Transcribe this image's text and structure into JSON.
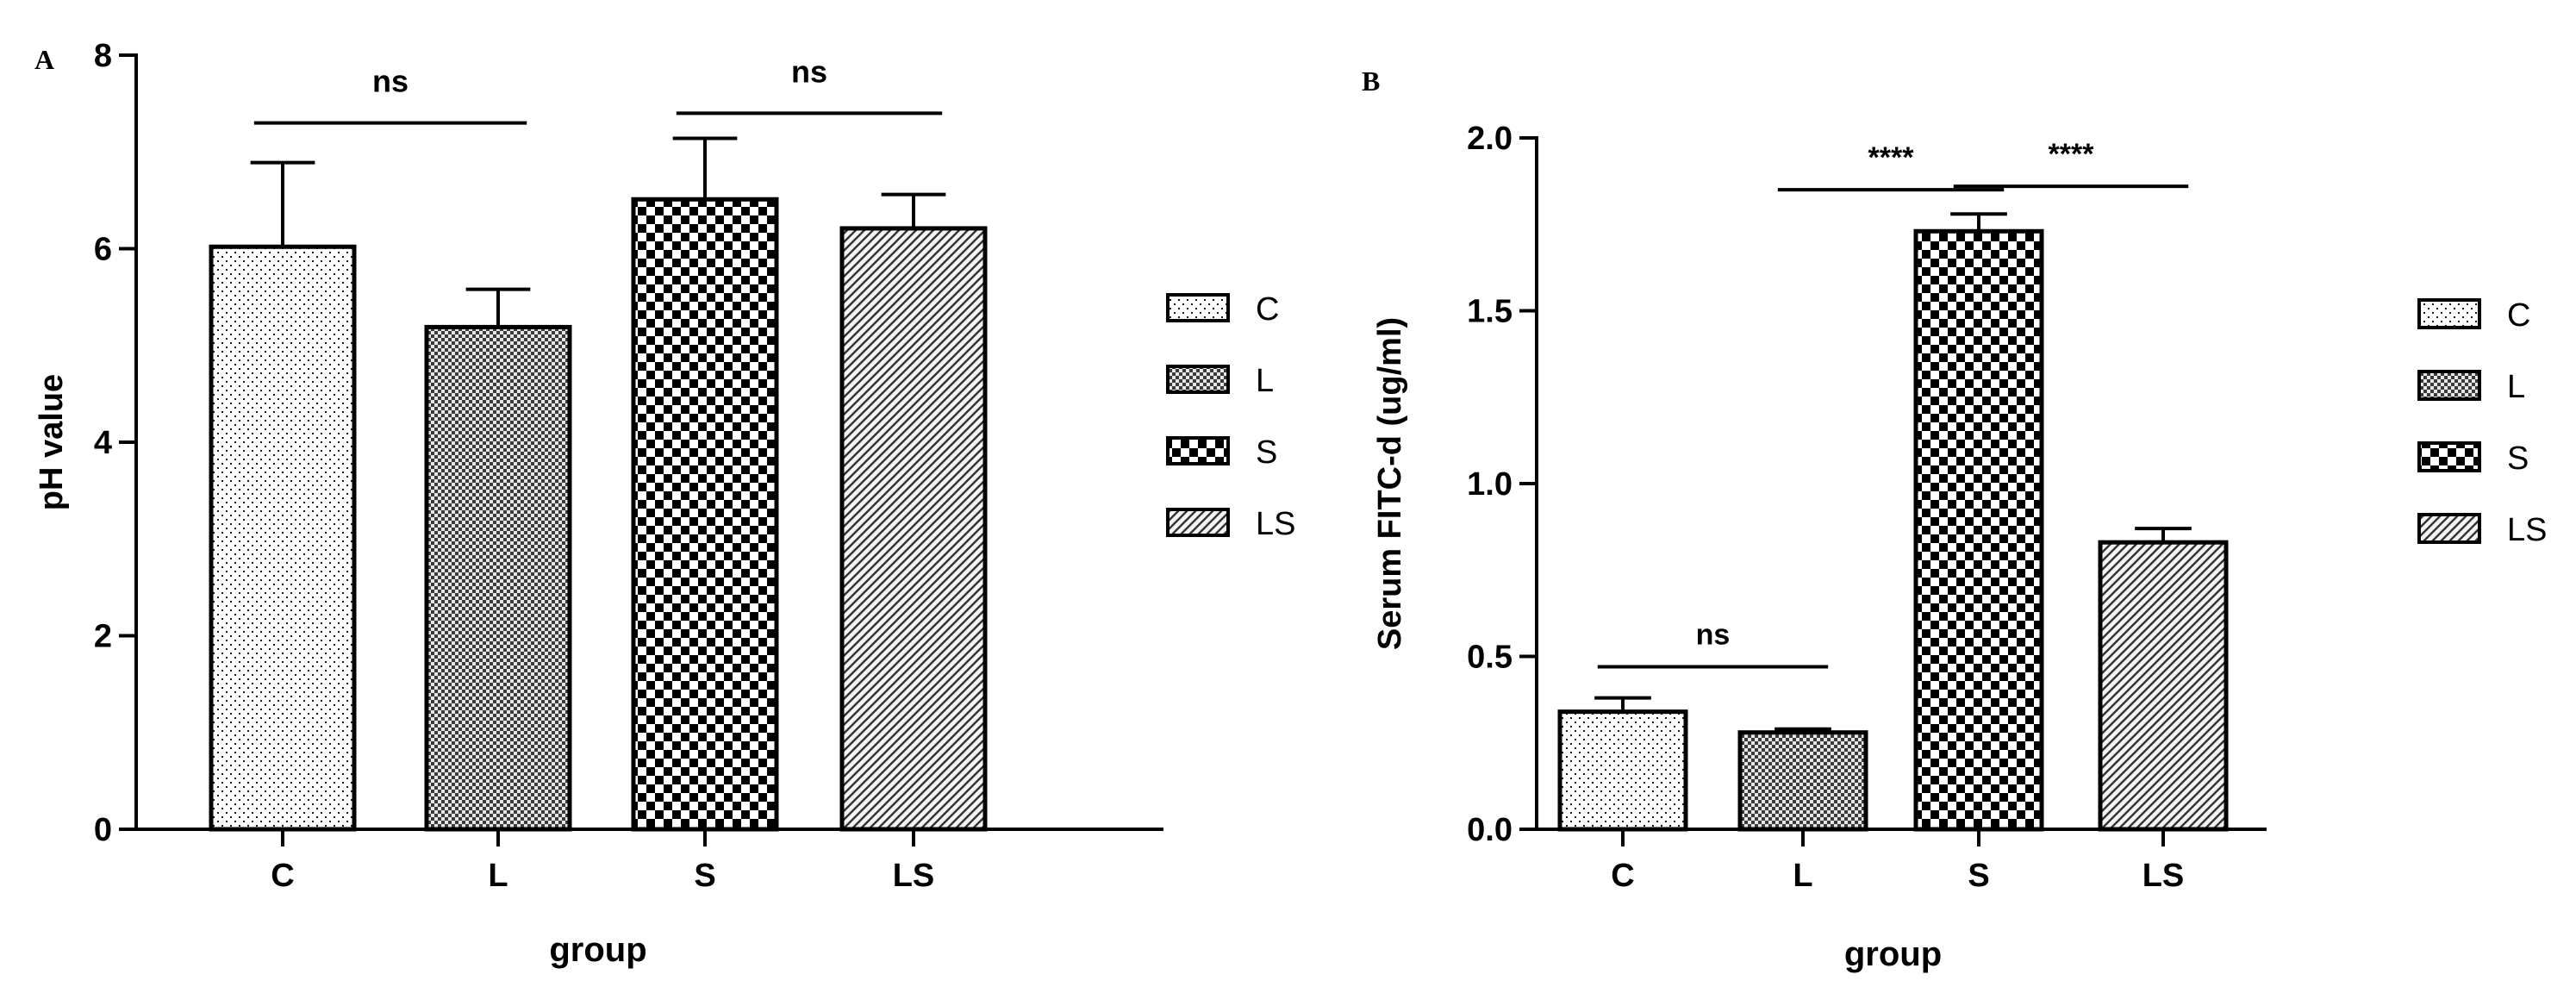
{
  "chart_data": [
    {
      "panel": "A",
      "type": "bar",
      "title": "",
      "xlabel": "group",
      "ylabel": "pH value",
      "categories": [
        "C",
        "L",
        "S",
        "LS"
      ],
      "values": [
        6.02,
        5.19,
        6.51,
        6.21
      ],
      "errors": [
        0.87,
        0.39,
        0.63,
        0.35
      ],
      "ylim": [
        0,
        8
      ],
      "yticks": [
        "0",
        "2",
        "4",
        "6",
        "8"
      ],
      "legend": {
        "position": "right",
        "entries": [
          "C",
          "L",
          "S",
          "LS"
        ]
      },
      "significance": [
        {
          "from": 0,
          "to": 1,
          "label": "ns",
          "y": 7.3
        },
        {
          "from": 2,
          "to": 3,
          "label": "ns",
          "y": 7.4
        }
      ],
      "grid": false
    },
    {
      "panel": "B",
      "type": "bar",
      "title": "",
      "xlabel": "group",
      "ylabel": "Serum FITC-d (ug/ml)",
      "categories": [
        "C",
        "L",
        "S",
        "LS"
      ],
      "values": [
        0.34,
        0.28,
        1.73,
        0.83
      ],
      "errors": [
        0.04,
        0.01,
        0.05,
        0.04
      ],
      "ylim": [
        0,
        2.0
      ],
      "yticks": [
        "0.0",
        "0.5",
        "1.0",
        "1.5",
        "2.0"
      ],
      "legend": {
        "position": "right",
        "entries": [
          "C",
          "L",
          "S",
          "LS"
        ]
      },
      "significance": [
        {
          "from": 0,
          "to": 1,
          "label": "ns",
          "y": 0.47
        },
        {
          "from": 1,
          "to": 2,
          "label": "****",
          "y": 1.85
        },
        {
          "from": 2,
          "to": 3,
          "label": "****",
          "y": 1.86
        }
      ],
      "grid": false
    }
  ],
  "patterns": [
    "dots",
    "fine-check",
    "checker",
    "diagonal"
  ],
  "colors": {
    "ink": "#000000",
    "background": "#ffffff"
  }
}
